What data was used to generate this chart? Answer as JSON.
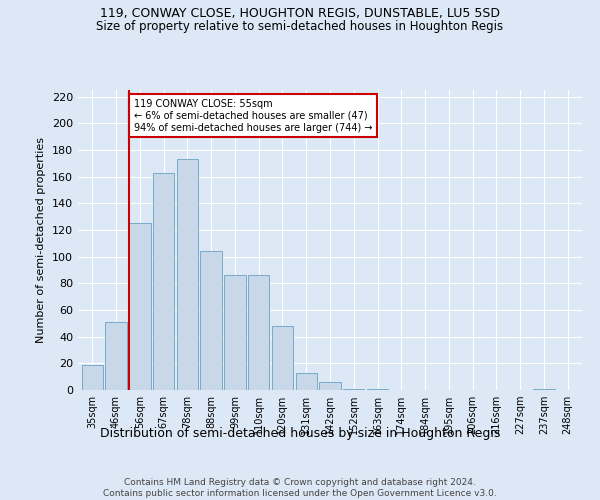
{
  "title1": "119, CONWAY CLOSE, HOUGHTON REGIS, DUNSTABLE, LU5 5SD",
  "title2": "Size of property relative to semi-detached houses in Houghton Regis",
  "xlabel": "Distribution of semi-detached houses by size in Houghton Regis",
  "ylabel": "Number of semi-detached properties",
  "footer": "Contains HM Land Registry data © Crown copyright and database right 2024.\nContains public sector information licensed under the Open Government Licence v3.0.",
  "bin_labels": [
    "35sqm",
    "46sqm",
    "56sqm",
    "67sqm",
    "78sqm",
    "88sqm",
    "99sqm",
    "110sqm",
    "120sqm",
    "131sqm",
    "142sqm",
    "152sqm",
    "163sqm",
    "174sqm",
    "184sqm",
    "195sqm",
    "206sqm",
    "216sqm",
    "227sqm",
    "237sqm",
    "248sqm"
  ],
  "bar_heights": [
    19,
    51,
    125,
    163,
    173,
    104,
    86,
    86,
    48,
    13,
    6,
    1,
    1,
    0,
    0,
    0,
    0,
    0,
    0,
    1,
    0
  ],
  "bar_color": "#c8d8e8",
  "bar_edge_color": "#7aaac8",
  "vline_color": "#cc0000",
  "annotation_box_color": "#cc0000",
  "annotation_box_fill": "#ffffff",
  "ylim": [
    0,
    225
  ],
  "yticks": [
    0,
    20,
    40,
    60,
    80,
    100,
    120,
    140,
    160,
    180,
    200,
    220
  ],
  "bg_color": "#dce8f5",
  "plot_bg_color": "#dce8f5",
  "grid_color": "#ffffff"
}
